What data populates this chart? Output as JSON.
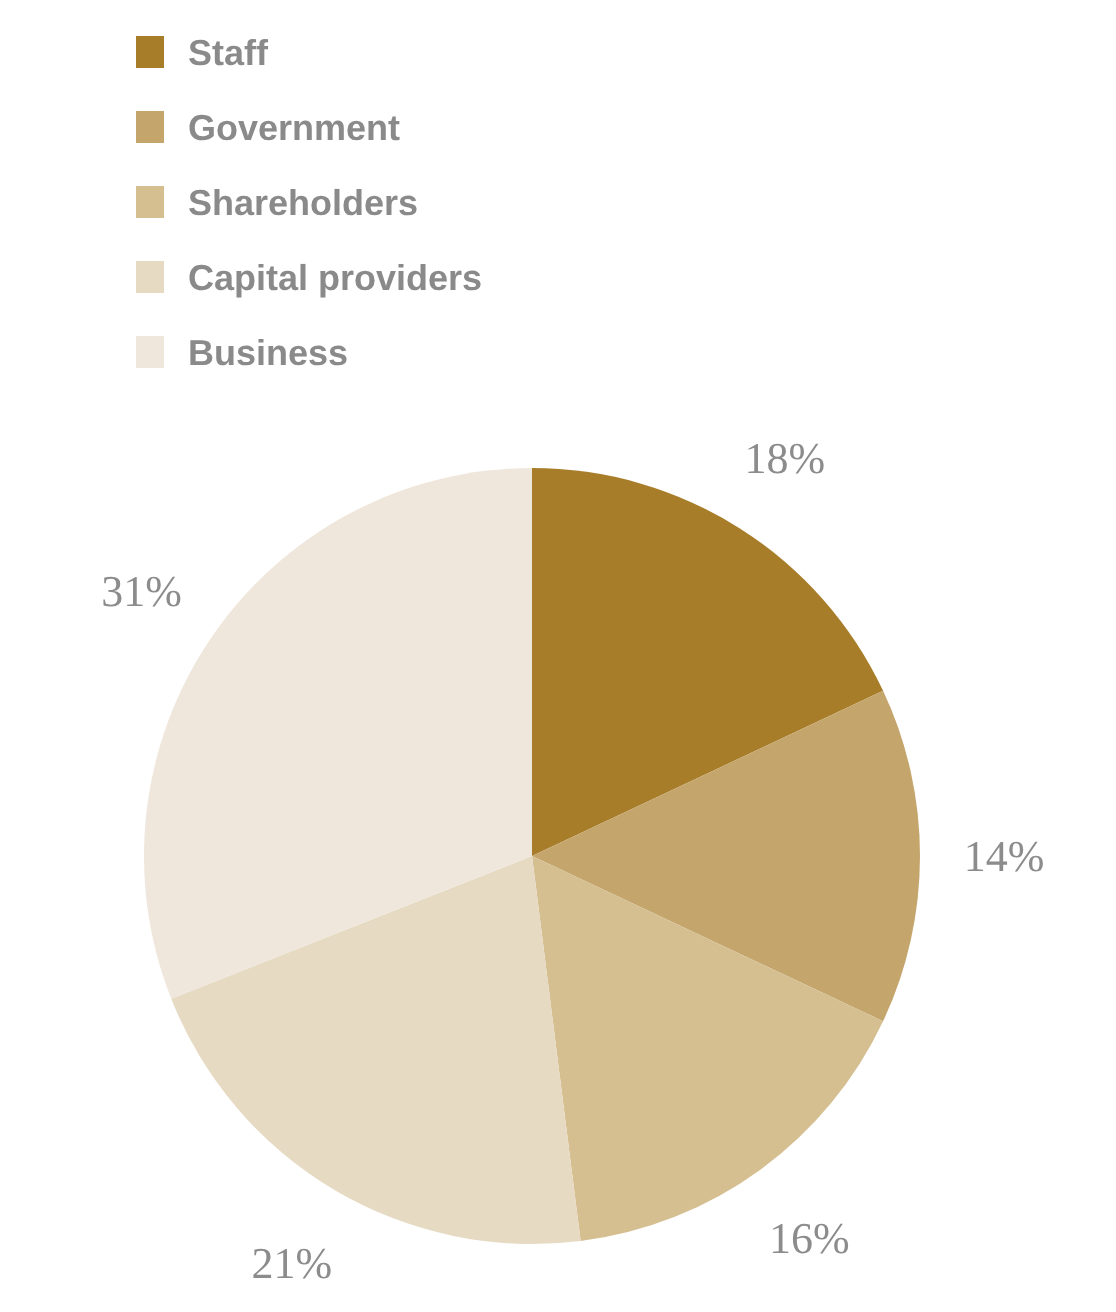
{
  "chart_data": {
    "type": "pie",
    "categories": [
      "Staff",
      "Government",
      "Shareholders",
      "Capital providers",
      "Business"
    ],
    "values": [
      18,
      14,
      16,
      21,
      31
    ],
    "colors": [
      "#a87d2a",
      "#c4a56b",
      "#d5bf91",
      "#e6dac3",
      "#efe7dc"
    ],
    "value_labels": [
      "18%",
      "14%",
      "16%",
      "21%",
      "31%"
    ],
    "legend": "top left"
  }
}
